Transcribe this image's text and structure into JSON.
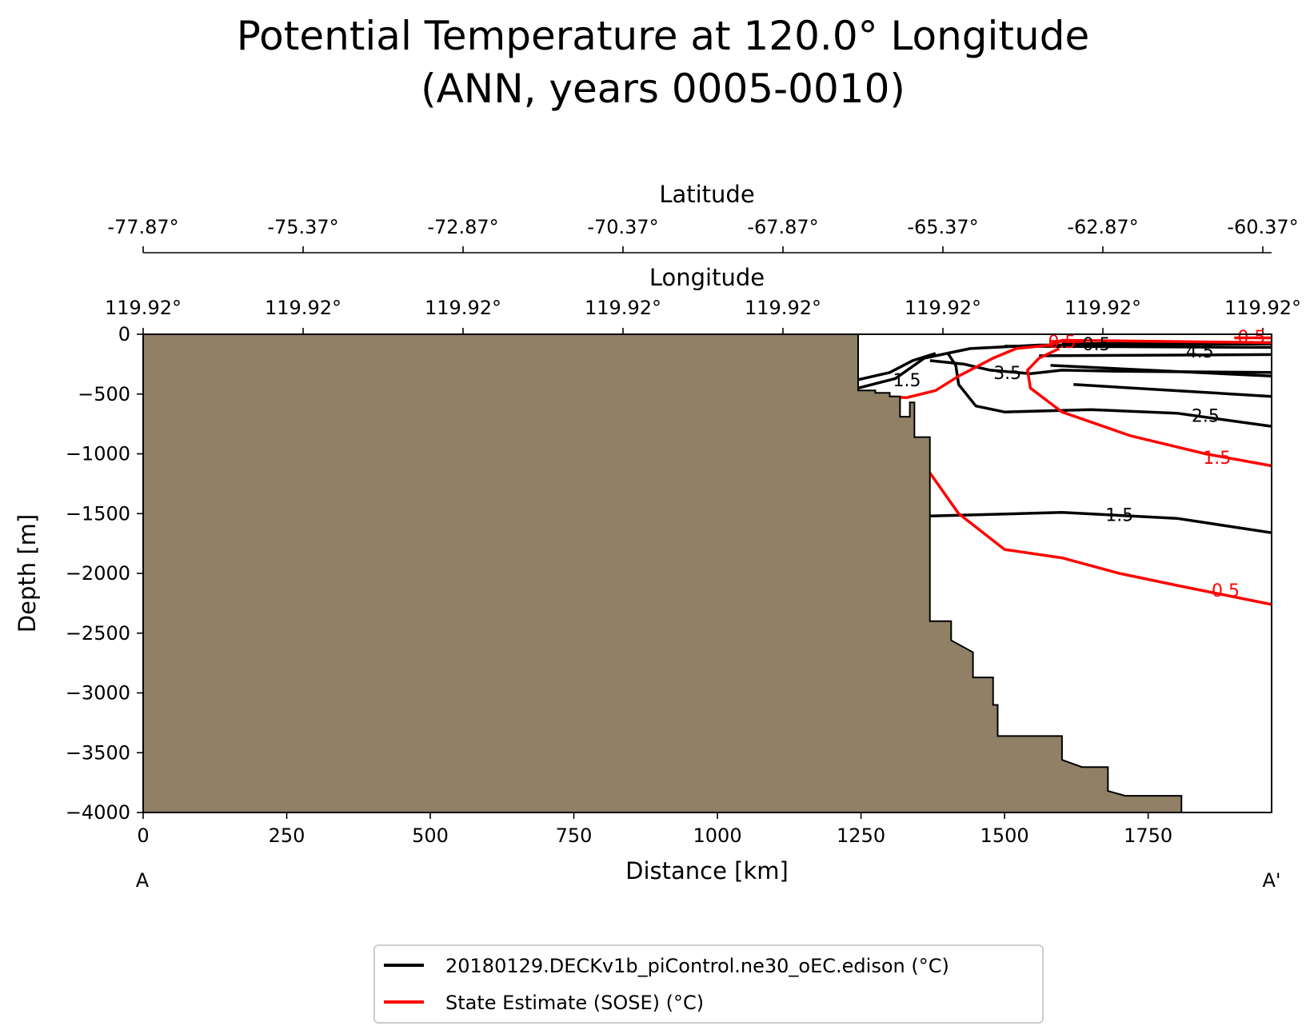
{
  "chart_data": {
    "type": "contour",
    "title_line1": "Potential Temperature at 120.0° Longitude",
    "title_line2": "(ANN, years 0005-0010)",
    "xlabel": "Distance [km]",
    "ylabel": "Depth [m]",
    "xlim": [
      0,
      1965
    ],
    "ylim": [
      -4000,
      0
    ],
    "x_ticks": [
      "0",
      "250",
      "500",
      "750",
      "1000",
      "1250",
      "1500",
      "1750"
    ],
    "x_tick_values": [
      0,
      250,
      500,
      750,
      1000,
      1250,
      1500,
      1750
    ],
    "y_ticks": [
      "0",
      "−500",
      "−1000",
      "−1500",
      "−2000",
      "−2500",
      "−3000",
      "−3500",
      "−4000"
    ],
    "y_tick_values": [
      0,
      -500,
      -1000,
      -1500,
      -2000,
      -2500,
      -3000,
      -3500,
      -4000
    ],
    "section_start_label": "A",
    "section_end_label": "A'",
    "top_axis_latitude": {
      "label": "Latitude",
      "ticks": [
        "-77.87°",
        "-75.37°",
        "-72.87°",
        "-70.37°",
        "-67.87°",
        "-65.37°",
        "-62.87°",
        "-60.37°"
      ]
    },
    "top_axis_longitude": {
      "label": "Longitude",
      "ticks": [
        "119.92°",
        "119.92°",
        "119.92°",
        "119.92°",
        "119.92°",
        "119.92°",
        "119.92°",
        "119.92°"
      ]
    },
    "land_color": "#8f8066",
    "bathymetry": [
      [
        1245,
        0
      ],
      [
        1245,
        -470
      ],
      [
        1275,
        -470
      ],
      [
        1275,
        -490
      ],
      [
        1300,
        -490
      ],
      [
        1300,
        -520
      ],
      [
        1318,
        -520
      ],
      [
        1318,
        -690
      ],
      [
        1335,
        -690
      ],
      [
        1335,
        -570
      ],
      [
        1343,
        -570
      ],
      [
        1343,
        -860
      ],
      [
        1370,
        -860
      ],
      [
        1370,
        -2400
      ],
      [
        1407,
        -2400
      ],
      [
        1407,
        -2560
      ],
      [
        1445,
        -2660
      ],
      [
        1445,
        -2870
      ],
      [
        1480,
        -2870
      ],
      [
        1480,
        -3100
      ],
      [
        1488,
        -3100
      ],
      [
        1488,
        -3360
      ],
      [
        1600,
        -3360
      ],
      [
        1600,
        -3560
      ],
      [
        1635,
        -3620
      ],
      [
        1680,
        -3620
      ],
      [
        1680,
        -3820
      ],
      [
        1710,
        -3860
      ],
      [
        1808,
        -3860
      ],
      [
        1808,
        -4000
      ]
    ],
    "series": [
      {
        "name": "20180129.DECKv1b_piControl.ne30_oEC.edison (°C)",
        "color": "#000000",
        "contours": [
          {
            "level": "1.5",
            "label": "1.5",
            "label_at": [
              1330,
              -380
            ],
            "points": [
              [
                1245,
                -380
              ],
              [
                1300,
                -320
              ],
              [
                1340,
                -220
              ],
              [
                1380,
                -160
              ]
            ]
          },
          {
            "level": "1.5",
            "label": null,
            "points": [
              [
                1245,
                -450
              ],
              [
                1310,
                -370
              ],
              [
                1360,
                -200
              ],
              [
                1440,
                -120
              ],
              [
                1560,
                -90
              ],
              [
                1965,
                -80
              ]
            ]
          },
          {
            "level": "3.5",
            "label": "3.5",
            "label_at": [
              1505,
              -320
            ],
            "points": [
              [
                1370,
                -220
              ],
              [
                1430,
                -250
              ],
              [
                1475,
                -300
              ],
              [
                1545,
                -330
              ],
              [
                1600,
                -300
              ],
              [
                1700,
                -310
              ],
              [
                1965,
                -320
              ]
            ]
          },
          {
            "level": "2.5",
            "label": "2.5",
            "label_at": [
              1850,
              -680
            ],
            "points": [
              [
                1400,
                -150
              ],
              [
                1415,
                -260
              ],
              [
                1420,
                -420
              ],
              [
                1450,
                -600
              ],
              [
                1500,
                -650
              ],
              [
                1650,
                -630
              ],
              [
                1800,
                -660
              ],
              [
                1965,
                -770
              ]
            ]
          },
          {
            "level": "1.5",
            "label": "1.5",
            "label_at": [
              1700,
              -1510
            ],
            "points": [
              [
                1370,
                -1520
              ],
              [
                1450,
                -1510
              ],
              [
                1600,
                -1490
              ],
              [
                1800,
                -1540
              ],
              [
                1965,
                -1660
              ]
            ]
          },
          {
            "level": "0.5",
            "label": "0.5",
            "label_at": [
              1660,
              -80
            ],
            "points": [
              [
                1600,
                -80
              ],
              [
                1965,
                -70
              ]
            ]
          },
          {
            "level": "4.5",
            "label": "4.5",
            "label_at": [
              1840,
              -140
            ],
            "points": [
              [
                1500,
                -100
              ],
              [
                1965,
                -110
              ]
            ]
          },
          {
            "level": "4.5",
            "label": null,
            "points": [
              [
                1560,
                -180
              ],
              [
                1965,
                -170
              ]
            ]
          },
          {
            "level": "3.5",
            "label": null,
            "points": [
              [
                1580,
                -260
              ],
              [
                1965,
                -350
              ]
            ]
          },
          {
            "level": "2.5",
            "label": null,
            "points": [
              [
                1620,
                -420
              ],
              [
                1965,
                -520
              ]
            ]
          }
        ]
      },
      {
        "name": "State Estimate (SOSE) (°C)",
        "color": "#ff0000",
        "contours": [
          {
            "level": "1.5",
            "label": "1.5",
            "label_at": [
              1870,
              -1030
            ],
            "points": [
              [
                1280,
                -520
              ],
              [
                1330,
                -530
              ],
              [
                1380,
                -470
              ],
              [
                1420,
                -350
              ],
              [
                1480,
                -200
              ],
              [
                1520,
                -120
              ],
              [
                1580,
                -90
              ],
              [
                1600,
                -50
              ],
              [
                1965,
                -70
              ]
            ]
          },
          {
            "level": "1.5",
            "label": null,
            "points": [
              [
                1595,
                -120
              ],
              [
                1560,
                -200
              ],
              [
                1540,
                -300
              ],
              [
                1545,
                -450
              ],
              [
                1600,
                -650
              ],
              [
                1720,
                -850
              ],
              [
                1850,
                -1000
              ],
              [
                1965,
                -1100
              ]
            ]
          },
          {
            "level": "0.5",
            "label": "0.5",
            "label_at": [
              1885,
              -2140
            ],
            "points": [
              [
                1370,
                -1160
              ],
              [
                1420,
                -1500
              ],
              [
                1500,
                -1800
              ],
              [
                1600,
                -1870
              ],
              [
                1700,
                -2000
              ],
              [
                1800,
                -2100
              ],
              [
                1965,
                -2260
              ]
            ]
          },
          {
            "level": "0.5",
            "label": "0.5",
            "label_at": [
              1600,
              -60
            ],
            "points": [
              [
                1580,
                -60
              ],
              [
                1640,
                -60
              ]
            ]
          },
          {
            "level": "0.5",
            "label": "0.5",
            "label_at": [
              1930,
              -20
            ],
            "points": [
              [
                1900,
                -30
              ],
              [
                1965,
                -30
              ]
            ]
          }
        ]
      }
    ],
    "legend_location": "bottom-center"
  }
}
